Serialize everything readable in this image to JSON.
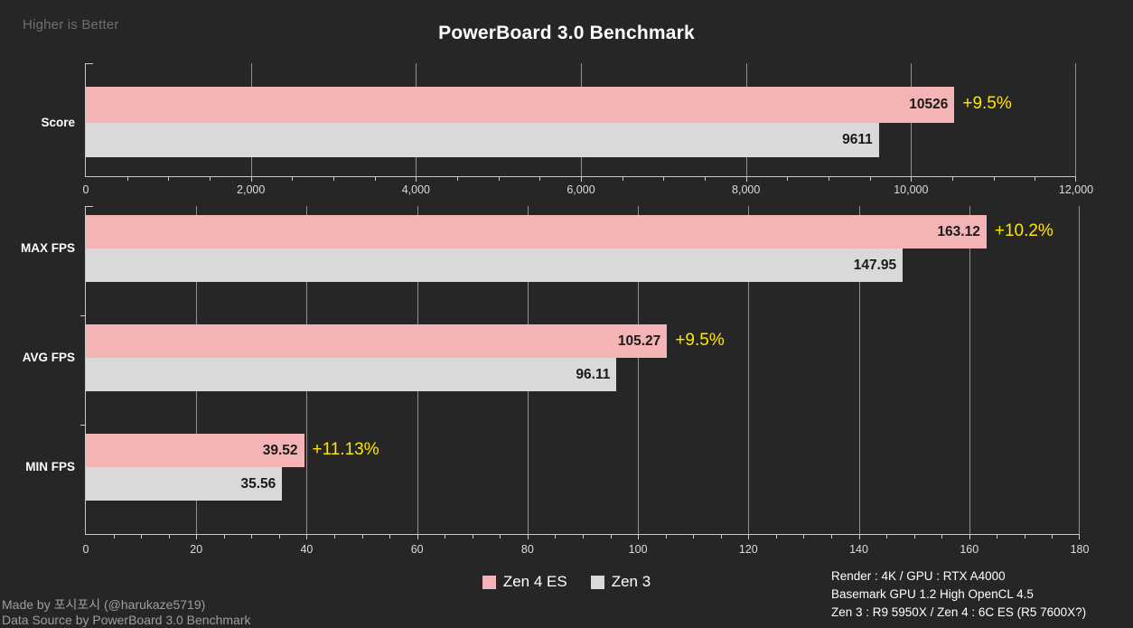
{
  "header": {
    "note": "Higher is Better",
    "title": "PowerBoard 3.0 Benchmark"
  },
  "colors": {
    "bg": "#262626",
    "bar_zen4": "#f4b3b5",
    "bar_zen3": "#d9d9d9",
    "delta_text": "#ffe600",
    "gridline": "#8f8f8f",
    "axis_line": "#c9c9c9",
    "tick_label": "#dcdcdc",
    "category_label": "#ffffff",
    "value_label": "#1a1a1a",
    "note_text": "#6f6f6f",
    "credit_text": "#9e9e9e",
    "footer_text": "#ffffff",
    "title_text": "#ffffff"
  },
  "legend": {
    "items": [
      {
        "label": "Zen 4 ES",
        "color": "#f4b3b5"
      },
      {
        "label": "Zen 3",
        "color": "#d9d9d9"
      }
    ]
  },
  "footer": {
    "credit_line1": "Made by 포시포시 (@harukaze5719)",
    "credit_line2": "Data Source by PowerBoard 3.0 Benchmark",
    "notes": [
      "Render : 4K / GPU : RTX A4000",
      "Basemark GPU 1.2 High OpenCL 4.5",
      "Zen 3 : R9 5950X / Zen 4 : 6C ES (R5 7600X?)"
    ]
  },
  "chart_data": [
    {
      "type": "bar",
      "orientation": "horizontal",
      "categories": [
        "Score"
      ],
      "series": [
        {
          "name": "Zen 4 ES",
          "color": "#f4b3b5",
          "values": [
            10526
          ],
          "value_labels": [
            "10526"
          ],
          "delta_labels": [
            "+9.5%"
          ]
        },
        {
          "name": "Zen 3",
          "color": "#d9d9d9",
          "values": [
            9611
          ],
          "value_labels": [
            "9611"
          ],
          "delta_labels": [
            null
          ]
        }
      ],
      "xlim": [
        0,
        12000
      ],
      "xtick_values": [
        0,
        2000,
        4000,
        6000,
        8000,
        10000,
        12000
      ],
      "xtick_labels": [
        "0",
        "2,000",
        "4,000",
        "6,000",
        "8,000",
        "10,000",
        "12,000"
      ],
      "minor_tick_step": 500,
      "grid": true,
      "legend_position": "bottom",
      "title": "",
      "xlabel": "",
      "ylabel": ""
    },
    {
      "type": "bar",
      "orientation": "horizontal",
      "categories": [
        "MAX FPS",
        "AVG FPS",
        "MIN FPS"
      ],
      "series": [
        {
          "name": "Zen 4 ES",
          "color": "#f4b3b5",
          "values": [
            163.12,
            105.27,
            39.52
          ],
          "value_labels": [
            "163.12",
            "105.27",
            "39.52"
          ],
          "delta_labels": [
            "+10.2%",
            "+9.5%",
            "+11.13%"
          ]
        },
        {
          "name": "Zen 3",
          "color": "#d9d9d9",
          "values": [
            147.95,
            96.11,
            35.56
          ],
          "value_labels": [
            "147.95",
            "96.11",
            "35.56"
          ],
          "delta_labels": [
            null,
            null,
            null
          ]
        }
      ],
      "xlim": [
        0,
        180
      ],
      "xtick_values": [
        0,
        20,
        40,
        60,
        80,
        100,
        120,
        140,
        160,
        180
      ],
      "xtick_labels": [
        "0",
        "20",
        "40",
        "60",
        "80",
        "100",
        "120",
        "140",
        "160",
        "180"
      ],
      "minor_tick_step": 5,
      "grid": true,
      "legend_position": "bottom",
      "title": "",
      "xlabel": "",
      "ylabel": ""
    }
  ]
}
